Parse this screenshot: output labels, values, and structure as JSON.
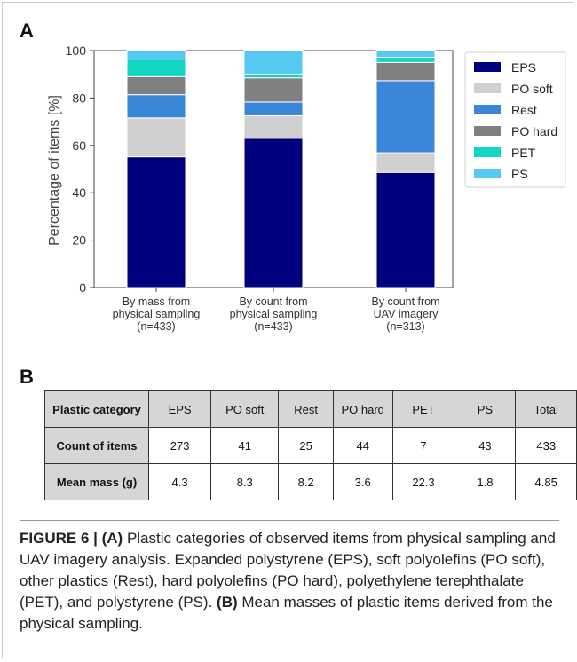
{
  "panels": {
    "a_letter": "A",
    "b_letter": "B"
  },
  "chart_data": {
    "type": "bar",
    "stacked": true,
    "title": "",
    "xlabel": "",
    "ylabel": "Percentage of items [%]",
    "ylim": [
      0,
      100
    ],
    "yticks": [
      0,
      20,
      40,
      60,
      80,
      100
    ],
    "legend_position": "right",
    "categories": [
      [
        "By mass from",
        "physical sampling",
        "(n=433)"
      ],
      [
        "By count from",
        "physical sampling",
        "(n=433)"
      ],
      [
        "By count from",
        "UAV imagery",
        "(n=313)"
      ]
    ],
    "series": [
      {
        "name": "EPS",
        "color": "#00007f",
        "values": [
          55.2,
          63.0,
          48.6
        ]
      },
      {
        "name": "PO soft",
        "color": "#d0d0d0",
        "values": [
          16.4,
          9.5,
          8.3
        ]
      },
      {
        "name": "Rest",
        "color": "#3a86d8",
        "values": [
          9.8,
          5.8,
          30.4
        ]
      },
      {
        "name": "PO hard",
        "color": "#808080",
        "values": [
          7.6,
          10.2,
          7.7
        ]
      },
      {
        "name": "PET",
        "color": "#13d6c4",
        "values": [
          7.4,
          1.6,
          2.2
        ]
      },
      {
        "name": "PS",
        "color": "#57c8f2",
        "values": [
          3.6,
          9.9,
          2.8
        ]
      }
    ]
  },
  "table": {
    "header": [
      "Plastic category",
      "EPS",
      "PO soft",
      "Rest",
      "PO hard",
      "PET",
      "PS",
      "Total"
    ],
    "rows": [
      {
        "label": "Count of items",
        "values": [
          "273",
          "41",
          "25",
          "44",
          "7",
          "43",
          "433"
        ]
      },
      {
        "label": "Mean mass (g)",
        "values": [
          "4.3",
          "8.3",
          "8.2",
          "3.6",
          "22.3",
          "1.8",
          "4.85"
        ]
      }
    ]
  },
  "caption": {
    "figure_label": "FIGURE 6 | ",
    "part_a": "(A)",
    "text_a": " Plastic categories of observed items from physical sampling and UAV imagery analysis. Expanded polystyrene (EPS), soft polyolefins (PO soft), other plastics (Rest), hard polyolefins (PO hard), polyethylene terephthalate (PET), and polystyrene (PS). ",
    "part_b": "(B)",
    "text_b": " Mean masses of plastic items derived from the physical sampling."
  }
}
